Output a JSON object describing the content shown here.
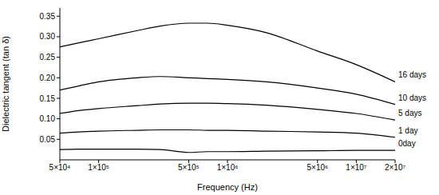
{
  "chart_data": {
    "type": "line",
    "x_label": "Frequency (Hz)",
    "y_label": "Dielectric tangent (tan δ)",
    "log": "x",
    "grid": false,
    "xlim": [
      50000,
      20000000
    ],
    "xticks": [
      {
        "value": 50000,
        "label": "5×10⁴"
      },
      {
        "value": 100000,
        "label": "1×10⁵"
      },
      {
        "value": 500000,
        "label": "5×10⁵"
      },
      {
        "value": 1000000,
        "label": "1×10⁶"
      },
      {
        "value": 5000000,
        "label": "5×10⁶"
      },
      {
        "value": 10000000,
        "label": "1×10⁷"
      },
      {
        "value": 20000000,
        "label": "2×10⁷"
      }
    ],
    "ylim": [
      0,
      0.37
    ],
    "yticks": [
      0.05,
      {
        "value": 0.1,
        "label": "0.10"
      },
      0.15,
      {
        "value": 0.2,
        "label": "0.20"
      },
      0.25,
      {
        "value": 0.3,
        "label": "0.30"
      },
      0.35
    ],
    "x": [
      50000,
      70000,
      100000,
      200000,
      300000,
      500000,
      700000,
      1000000,
      2000000,
      5000000,
      10000000,
      20000000
    ],
    "series": [
      {
        "name": "16 days",
        "color": "#000000",
        "values": [
          0.275,
          0.285,
          0.295,
          0.315,
          0.326,
          0.333,
          0.333,
          0.328,
          0.31,
          0.265,
          0.232,
          0.19
        ]
      },
      {
        "name": "10 days",
        "color": "#000000",
        "values": [
          0.17,
          0.18,
          0.19,
          0.2,
          0.203,
          0.2,
          0.198,
          0.196,
          0.19,
          0.175,
          0.16,
          0.135
        ]
      },
      {
        "name": "5 days",
        "color": "#000000",
        "values": [
          0.113,
          0.12,
          0.125,
          0.132,
          0.136,
          0.138,
          0.138,
          0.137,
          0.133,
          0.123,
          0.113,
          0.097
        ]
      },
      {
        "name": "1 day",
        "color": "#000000",
        "values": [
          0.065,
          0.068,
          0.07,
          0.072,
          0.073,
          0.073,
          0.072,
          0.072,
          0.07,
          0.068,
          0.065,
          0.055
        ]
      },
      {
        "name": "0day",
        "color": "#000000",
        "values": [
          0.025,
          0.026,
          0.026,
          0.026,
          0.025,
          0.018,
          0.02,
          0.02,
          0.021,
          0.022,
          0.023,
          0.023
        ]
      }
    ]
  }
}
